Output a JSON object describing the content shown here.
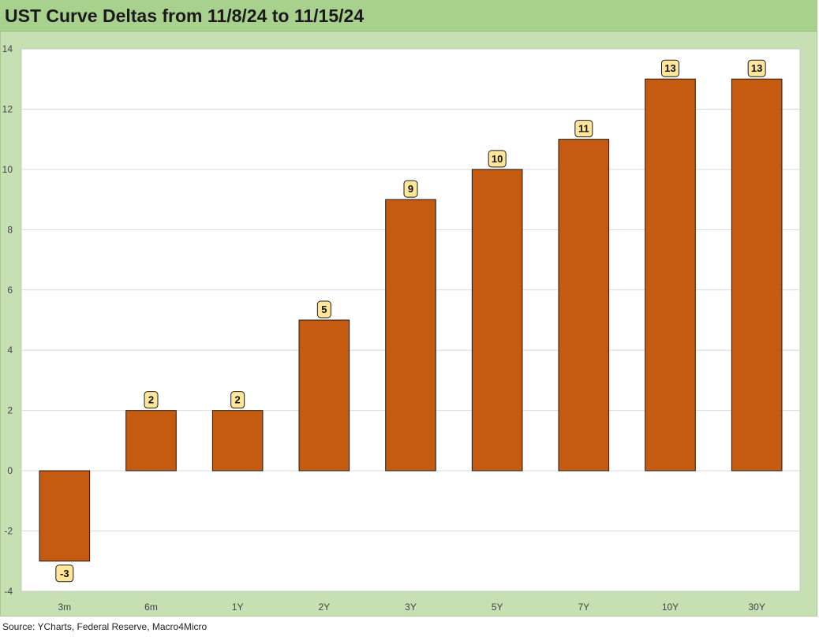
{
  "title": "UST Curve Deltas from 11/8/24 to 11/15/24",
  "source": "Source: YCharts, Federal Reserve, Macro4Micro",
  "colors": {
    "bar": "#c55a11",
    "label_bg": "#ffe699",
    "frame": "#c6e0b4",
    "title_bar": "#a9d18e"
  },
  "chart_data": {
    "type": "bar",
    "title": "UST Curve Deltas from 11/8/24 to 11/15/24",
    "xlabel": "",
    "ylabel": "",
    "categories": [
      "3m",
      "6m",
      "1Y",
      "2Y",
      "3Y",
      "5Y",
      "7Y",
      "10Y",
      "30Y"
    ],
    "values": [
      -3,
      2,
      2,
      5,
      9,
      10,
      11,
      13,
      13
    ],
    "data_labels": [
      "-3",
      "2",
      "2",
      "5",
      "9",
      "10",
      "11",
      "13",
      "13"
    ],
    "ylim": [
      -4,
      14
    ],
    "yticks": [
      -4,
      -2,
      0,
      2,
      4,
      6,
      8,
      10,
      12,
      14
    ],
    "ytick_labels": [
      "-4",
      "-2",
      "0",
      "2",
      "4",
      "6",
      "8",
      "10",
      "12",
      "14"
    ],
    "grid": true,
    "legend": "none"
  }
}
